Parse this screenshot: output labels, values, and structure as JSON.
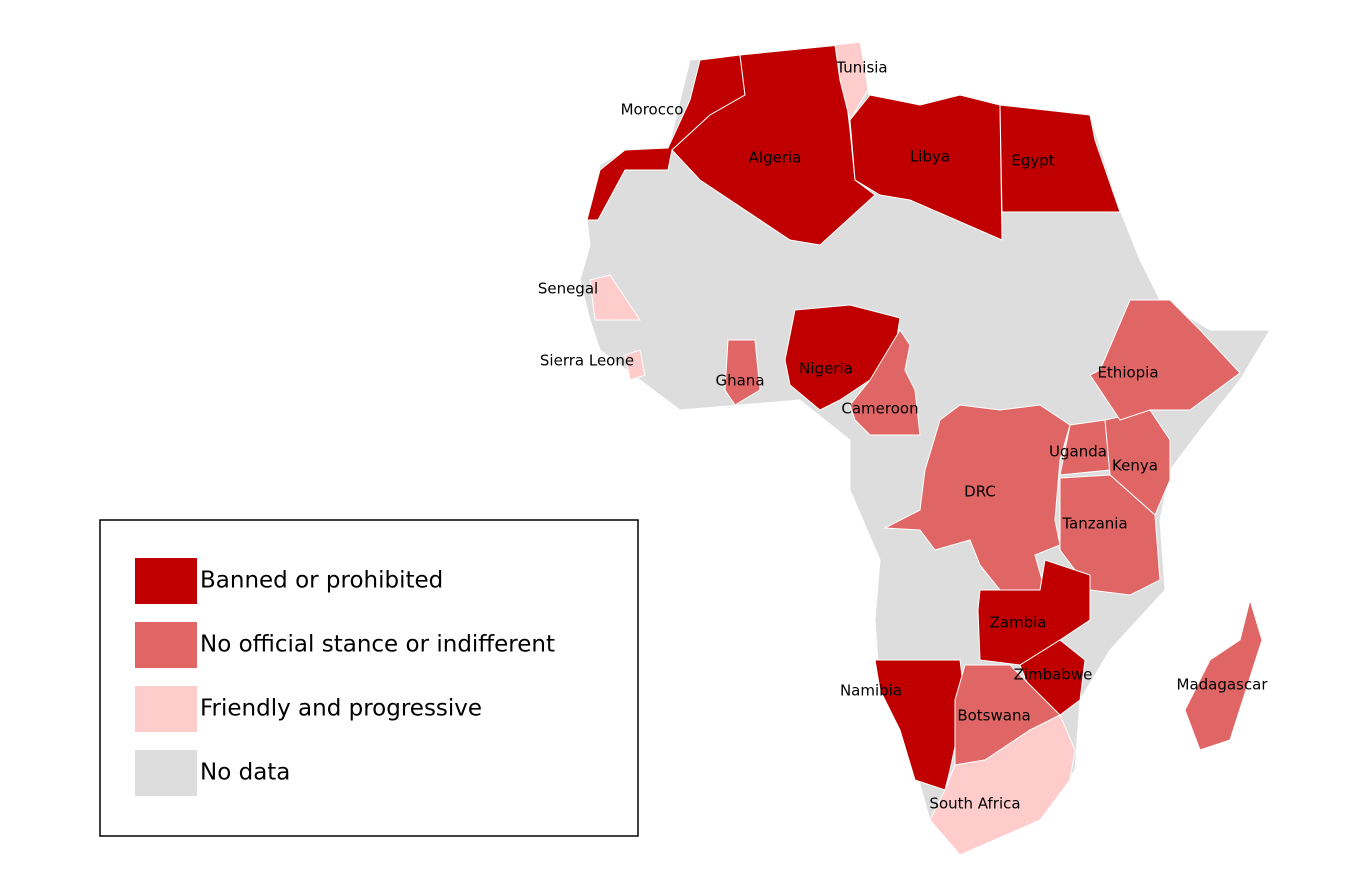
{
  "legend": {
    "items": [
      {
        "label": "Banned or prohibited",
        "color": "#c00000"
      },
      {
        "label": "No official stance or indifferent",
        "color": "#e06666"
      },
      {
        "label": "Friendly and progressive",
        "color": "#ffcccc"
      },
      {
        "label": "No data",
        "color": "#dddddd"
      }
    ]
  },
  "countries": [
    {
      "label": "Morocco",
      "status": 0
    },
    {
      "label": "Algeria",
      "status": 0
    },
    {
      "label": "Tunisia",
      "status": 2
    },
    {
      "label": "Libya",
      "status": 0
    },
    {
      "label": "Egypt",
      "status": 0
    },
    {
      "label": "Senegal",
      "status": 2
    },
    {
      "label": "Sierra Leone",
      "status": 2
    },
    {
      "label": "Ghana",
      "status": 1
    },
    {
      "label": "Nigeria",
      "status": 0
    },
    {
      "label": "Cameroon",
      "status": 1
    },
    {
      "label": "DRC",
      "status": 1
    },
    {
      "label": "Uganda",
      "status": 1
    },
    {
      "label": "Kenya",
      "status": 1
    },
    {
      "label": "Ethiopia",
      "status": 1
    },
    {
      "label": "Tanzania",
      "status": 1
    },
    {
      "label": "Zambia",
      "status": 0
    },
    {
      "label": "Zimbabwe",
      "status": 0
    },
    {
      "label": "Namibia",
      "status": 0
    },
    {
      "label": "Botswana",
      "status": 1
    },
    {
      "label": "South Africa",
      "status": 2
    },
    {
      "label": "Madagascar",
      "status": 1
    }
  ]
}
